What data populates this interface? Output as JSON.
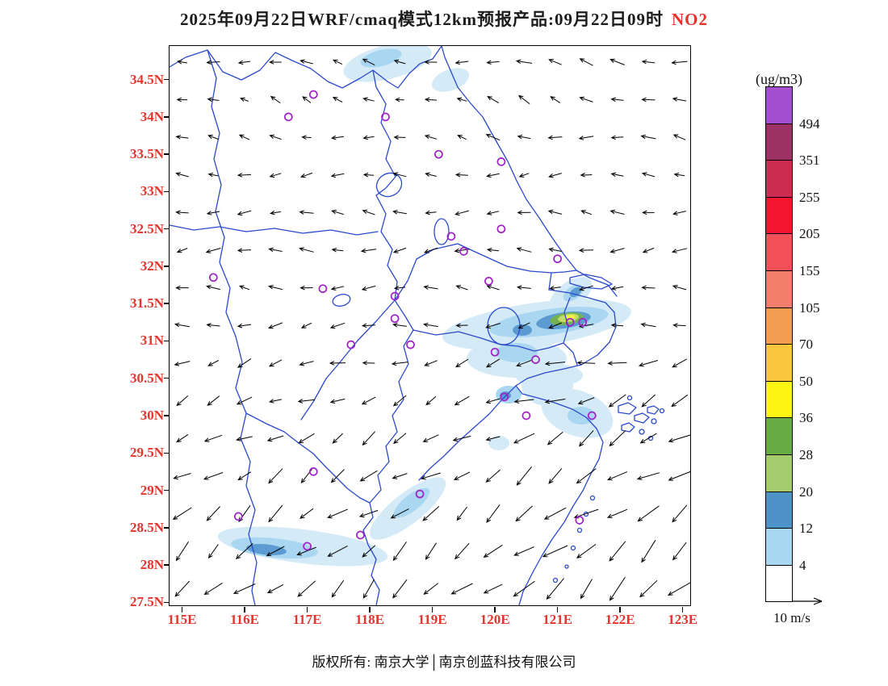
{
  "title": {
    "main": "2025年09月22日WRF/cmaq模式12km预报产品:09月22日09时",
    "species": "NO2"
  },
  "footer": {
    "copyright": "版权所有: 南京大学│南京创蓝科技有限公司"
  },
  "colorbar": {
    "unit_label": "(ug/m3)"
  },
  "wind_legend": {
    "label": "10 m/s"
  },
  "chart_data": {
    "type": "heatmap",
    "subtype": "filled-contour-map-with-wind-vectors",
    "title": "2025年09月22日WRF/cmaq模式12km预报产品:09月22日09时 NO2",
    "variable": "NO2",
    "unit": "ug/m3",
    "lon_range": [
      114.8,
      123.12
    ],
    "lat_range": [
      27.46,
      34.95
    ],
    "x_ticks": [
      {
        "label": "115E",
        "lon": 115
      },
      {
        "label": "116E",
        "lon": 116
      },
      {
        "label": "117E",
        "lon": 117
      },
      {
        "label": "118E",
        "lon": 118
      },
      {
        "label": "119E",
        "lon": 119
      },
      {
        "label": "120E",
        "lon": 120
      },
      {
        "label": "121E",
        "lon": 121
      },
      {
        "label": "122E",
        "lon": 122
      },
      {
        "label": "123E",
        "lon": 123
      }
    ],
    "y_ticks": [
      {
        "label": "34.5N",
        "lat": 34.5
      },
      {
        "label": "34N",
        "lat": 34
      },
      {
        "label": "33.5N",
        "lat": 33.5
      },
      {
        "label": "33N",
        "lat": 33
      },
      {
        "label": "32.5N",
        "lat": 32.5
      },
      {
        "label": "32N",
        "lat": 32
      },
      {
        "label": "31.5N",
        "lat": 31.5
      },
      {
        "label": "31N",
        "lat": 31
      },
      {
        "label": "30.5N",
        "lat": 30.5
      },
      {
        "label": "30N",
        "lat": 30
      },
      {
        "label": "29.5N",
        "lat": 29.5
      },
      {
        "label": "29N",
        "lat": 29
      },
      {
        "label": "28.5N",
        "lat": 28.5
      },
      {
        "label": "28N",
        "lat": 28
      },
      {
        "label": "27.5N",
        "lat": 27.5
      }
    ],
    "levels": [
      4,
      12,
      20,
      28,
      36,
      50,
      70,
      105,
      155,
      205,
      255,
      351,
      494
    ],
    "level_colors_low_to_high": [
      "#FFFFFF",
      "#A8D7F2",
      "#4E93C8",
      "#A3CC6C",
      "#68AC45",
      "#FCF513",
      "#F9C63D",
      "#F29C4F",
      "#F37E6B",
      "#F25058",
      "#F5152F",
      "#CC2B52",
      "#9C3263",
      "#A44FD0"
    ],
    "coastline_color": "#2B49CC",
    "station_marker_color": "#A020C8",
    "tick_label_color": "#E5352E",
    "stations_lonlat": [
      [
        117.1,
        34.3
      ],
      [
        116.7,
        34.0
      ],
      [
        118.25,
        34.0
      ],
      [
        119.1,
        33.5
      ],
      [
        120.1,
        33.4
      ],
      [
        120.1,
        32.5
      ],
      [
        119.3,
        32.4
      ],
      [
        119.5,
        32.2
      ],
      [
        121.0,
        32.1
      ],
      [
        115.5,
        31.85
      ],
      [
        117.25,
        31.7
      ],
      [
        119.9,
        31.8
      ],
      [
        118.4,
        31.6
      ],
      [
        118.4,
        31.3
      ],
      [
        121.2,
        31.25
      ],
      [
        121.4,
        31.25
      ],
      [
        117.7,
        30.95
      ],
      [
        118.65,
        30.95
      ],
      [
        120.0,
        30.85
      ],
      [
        120.65,
        30.75
      ],
      [
        120.15,
        30.25
      ],
      [
        120.5,
        30.0
      ],
      [
        121.55,
        30.0
      ],
      [
        117.1,
        29.25
      ],
      [
        118.8,
        28.95
      ],
      [
        115.9,
        28.65
      ],
      [
        117.85,
        28.4
      ],
      [
        117.0,
        28.25
      ],
      [
        121.35,
        28.6
      ]
    ],
    "wind": {
      "reference_label": "10 m/s",
      "reference_speed_ms": 10,
      "rows": [
        {
          "a": 170,
          "l": 15
        },
        {
          "a": 160,
          "l": 13
        },
        {
          "a": 172,
          "l": 14
        },
        {
          "a": 182,
          "l": 15
        },
        {
          "a": 178,
          "l": 16
        },
        {
          "a": 183,
          "l": 17
        },
        {
          "a": 178,
          "l": 16
        },
        {
          "a": 188,
          "l": 17
        },
        {
          "a": 196,
          "l": 18
        },
        {
          "a": 204,
          "l": 19
        },
        {
          "a": 210,
          "l": 21
        },
        {
          "a": 214,
          "l": 23
        },
        {
          "a": 217,
          "l": 25
        },
        {
          "a": 220,
          "l": 26
        },
        {
          "a": 222,
          "l": 27
        }
      ]
    },
    "legend_position": "right"
  }
}
